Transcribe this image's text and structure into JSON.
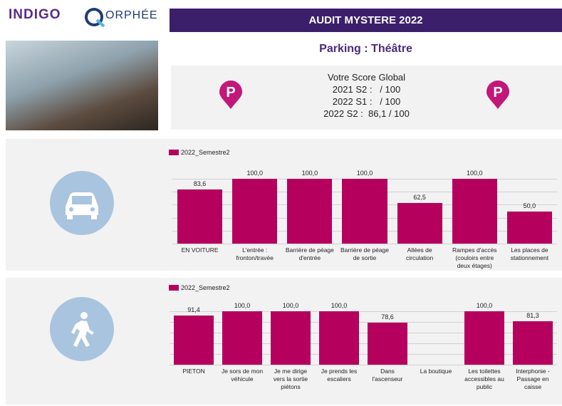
{
  "header": {
    "brand": "INDIGO",
    "partner": "ORPHÉE",
    "title": "AUDIT MYSTERE 2022",
    "subtitle": "Parking : Théâtre"
  },
  "score": {
    "heading": "Votre Score Global",
    "lines": [
      "2021 S2 :   / 100",
      "2022 S1 :   / 100",
      "2022 S2 :  86,1 / 100"
    ]
  },
  "chart_data": [
    {
      "type": "bar",
      "categories": [
        "EN VOITURE",
        "L'entrée : fronton/travée",
        "Barrière de péage d'entrée",
        "Barrière de péage de sortie",
        "Allées de circulation",
        "Rampes d'accès (couloirs entre deux étages)",
        "Les places de stationnement"
      ],
      "series": [
        {
          "name": "2022_Semestre2",
          "color": "#b5005e",
          "values": [
            83.6,
            100,
            100,
            100,
            62.5,
            100,
            50
          ],
          "value_labels": [
            "83,6",
            "100,0",
            "100,0",
            "100,0",
            "62,5",
            "100,0",
            "50,0"
          ]
        }
      ],
      "ylim": [
        0,
        100
      ],
      "yticks": [
        0,
        20,
        40,
        60,
        80,
        100
      ],
      "grid": true
    },
    {
      "type": "bar",
      "categories": [
        "PIETON",
        "Je sors de mon véhicule",
        "Je me dirige vers la sortie piétons",
        "Je prends les escaliers",
        "Dans l'ascenseur",
        "La boutique",
        "Les toilettes accessibles au public",
        "Interphonie - Passage en caisse"
      ],
      "series": [
        {
          "name": "2022_Semestre2",
          "color": "#b5005e",
          "values": [
            91.4,
            100,
            100,
            100,
            78.6,
            null,
            100,
            81.3
          ],
          "value_labels": [
            "91,4",
            "100,0",
            "100,0",
            "100,0",
            "78,6",
            null,
            "100,0",
            "81,3"
          ]
        }
      ],
      "ylim": [
        0,
        100
      ],
      "yticks": [
        0,
        20,
        40,
        60,
        80,
        100
      ],
      "grid": true
    }
  ]
}
